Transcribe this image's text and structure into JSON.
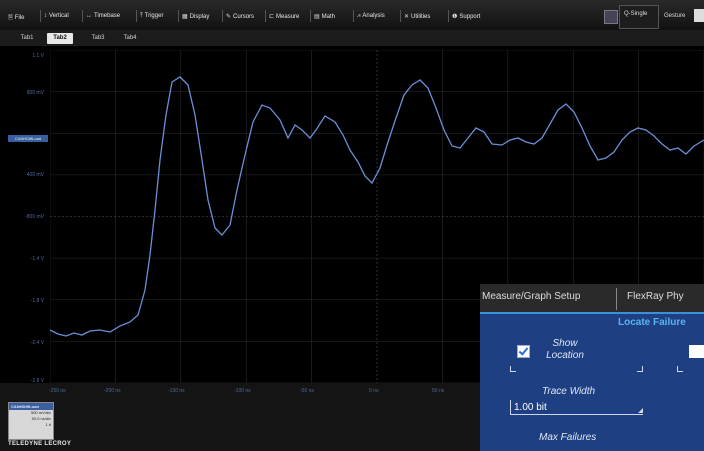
{
  "menubar": {
    "items": [
      {
        "icon": "file-icon",
        "glyph": "🗎",
        "label": "File"
      },
      {
        "icon": "vertical-icon",
        "glyph": "↕",
        "label": "Vertical"
      },
      {
        "icon": "timebase-icon",
        "glyph": "↔",
        "label": "Timebase"
      },
      {
        "icon": "trigger-icon",
        "glyph": "⤒",
        "label": "Trigger"
      },
      {
        "icon": "display-icon",
        "glyph": "▦",
        "label": "Display"
      },
      {
        "icon": "cursors-icon",
        "glyph": "✎",
        "label": "Cursors"
      },
      {
        "icon": "measure-icon",
        "glyph": "⊏",
        "label": "Measure"
      },
      {
        "icon": "math-icon",
        "glyph": "▤",
        "label": "Math"
      },
      {
        "icon": "analysis-icon",
        "glyph": "⩘",
        "label": "Analysis"
      },
      {
        "icon": "utilities-icon",
        "glyph": "✕",
        "label": "Utilities"
      },
      {
        "icon": "support-icon",
        "glyph": "❶",
        "label": "Support"
      }
    ],
    "trigger_mode": "Q-Single",
    "gesture": "Gesture"
  },
  "tabs": [
    "Tab1",
    "Tab2",
    "Tab3",
    "Tab4"
  ],
  "active_tab": "Tab2",
  "plot": {
    "y_labels": [
      "1.1 V",
      "800 mV",
      "400 mV",
      "-800 mV",
      "-1.4 V",
      "-1.8 V",
      "-2.4 V",
      "-2.8 V"
    ],
    "offset_marker": "CANHDiffLoad",
    "x_labels": [
      "-250 ns",
      "-200 ns",
      "-150 ns",
      "-100 ns",
      "-50 ns",
      "0 ns",
      "50 ns"
    ],
    "trace_color": "#6b8fd6",
    "grid_color": "#2c2c2c"
  },
  "trace_descriptor": {
    "name": "CANHDiffLoad",
    "vdiv": "500 mV/div",
    "tdiv": "50.0 ns/div",
    "sweeps": "1 #"
  },
  "brand": "TELEDYNE LECROY",
  "dialog": {
    "tabs": [
      "Measure/Graph Setup",
      "FlexRay Phy"
    ],
    "section_title": "Locate Failure",
    "show_location_label": "Show Location",
    "show_location_checked": true,
    "trace_width_label": "Trace Width",
    "trace_width_value": "1.00 bit",
    "max_failures_label": "Max Failures"
  }
}
